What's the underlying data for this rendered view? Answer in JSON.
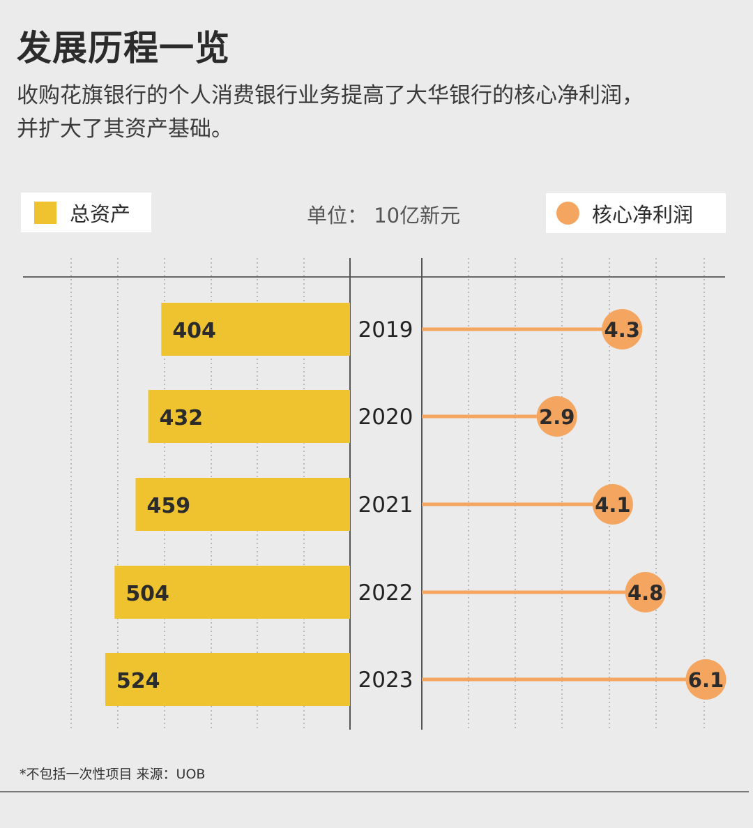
{
  "title": "发展历程一览",
  "subtitle_lines": [
    "收购花旗银行的个人消费银行业务提高了大华银行的核心净利润，",
    "并扩大了其资产基础。"
  ],
  "legend": {
    "assets_label": "总资产",
    "profit_label": "核心净利润"
  },
  "unit": "单位： 10亿新元",
  "footnote": "*不包括一次性项目  来源：UOB",
  "colors": {
    "assets": "#efc22f",
    "profit": "#f4a55f",
    "background": "#ebebeb"
  },
  "chart_data": {
    "type": "bar",
    "categories": [
      "2019",
      "2020",
      "2021",
      "2022",
      "2023"
    ],
    "series": [
      {
        "name": "总资产",
        "values": [
          404,
          432,
          459,
          504,
          524
        ]
      },
      {
        "name": "核心净利润",
        "values": [
          4.3,
          2.9,
          4.1,
          4.8,
          6.1
        ]
      }
    ],
    "unit": "单位： 10亿新元",
    "grid": true
  }
}
